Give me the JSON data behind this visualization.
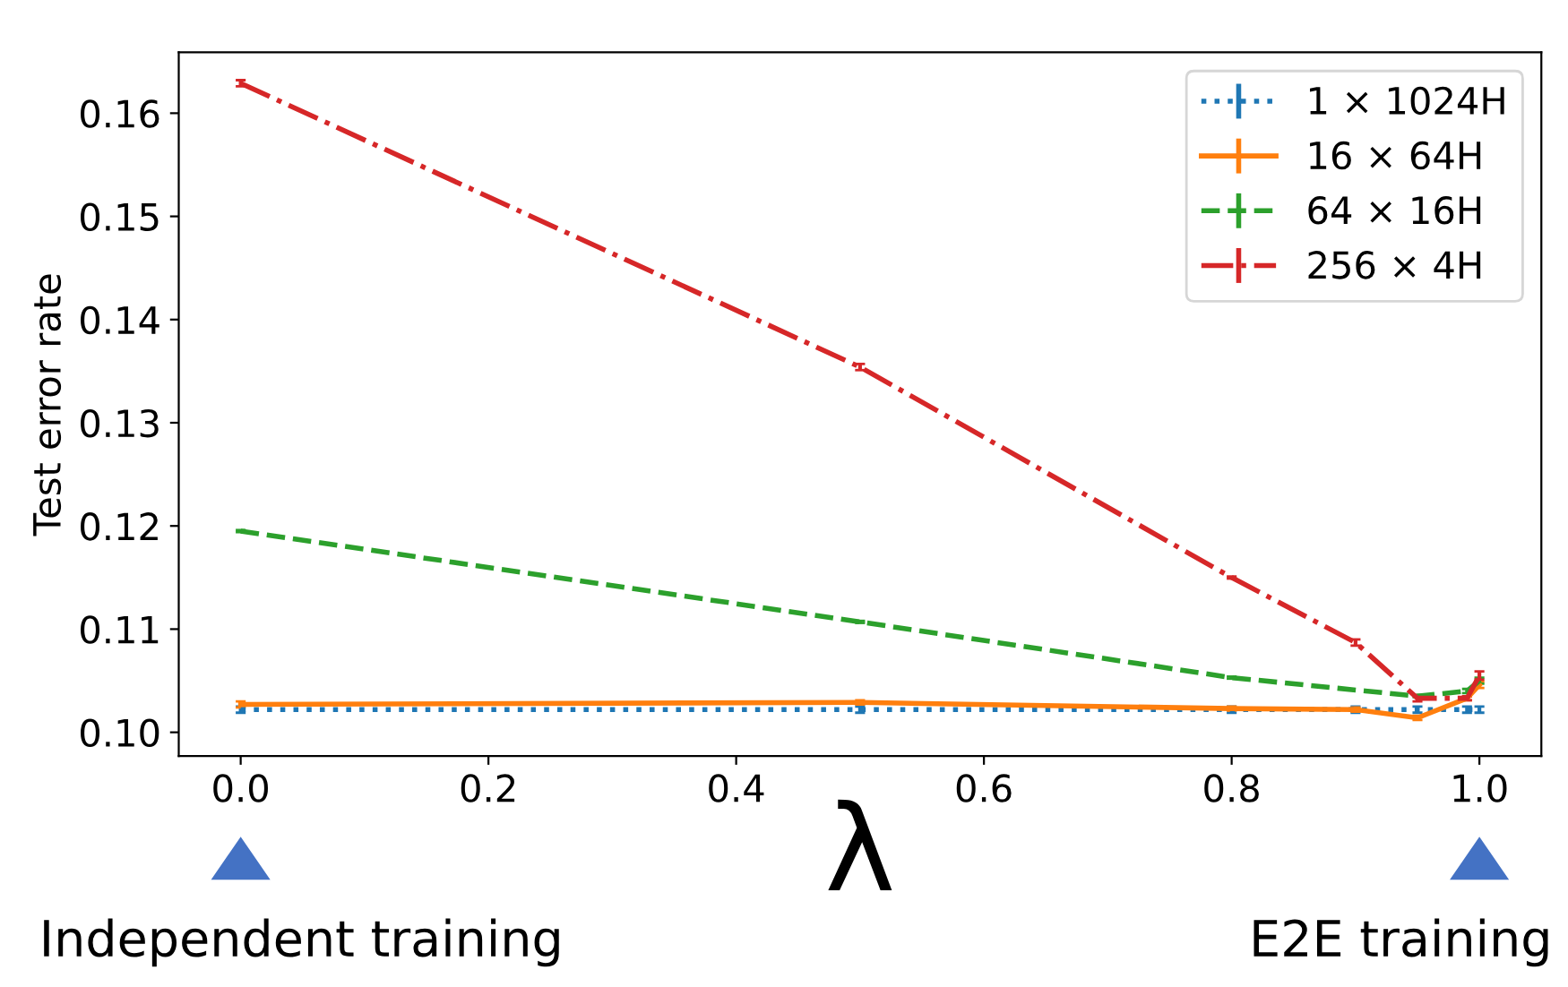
{
  "chart_data": {
    "type": "line",
    "xlabel": "λ",
    "ylabel": "Test error rate",
    "x": [
      0,
      0.5,
      0.8,
      0.9,
      0.95,
      0.99,
      1.0
    ],
    "series": [
      {
        "name": "1 × 1024H",
        "color": "#1f77b4",
        "line_style": "dotted",
        "values": [
          0.1022,
          0.1022,
          0.1022,
          0.1022,
          0.1022,
          0.1022,
          0.1022
        ],
        "errors": [
          0.0003,
          0.0003,
          0.0003,
          0.0003,
          0.0003,
          0.0003,
          0.0003
        ]
      },
      {
        "name": "16 × 64H",
        "color": "#ff7f0e",
        "line_style": "solid",
        "values": [
          0.1027,
          0.1029,
          0.1023,
          0.1022,
          0.1014,
          0.1033,
          0.1046
        ],
        "errors": [
          0.0003,
          0.0002,
          0.0002,
          0.0002,
          0.0002,
          0.0002,
          0.0003
        ]
      },
      {
        "name": "64 × 16H",
        "color": "#2ca02c",
        "line_style": "dashed",
        "values": [
          0.1195,
          0.1107,
          0.1053,
          null,
          0.1035,
          0.104,
          0.105
        ],
        "errors": [
          0.0001,
          0.0001,
          0.0001,
          null,
          0.0001,
          0.0002,
          0.0003
        ]
      },
      {
        "name": "256 × 4H",
        "color": "#d62728",
        "line_style": "dashdot",
        "values": [
          0.1629,
          0.1354,
          0.115,
          0.1087,
          0.1033,
          0.1033,
          0.1055
        ],
        "errors": [
          0.0003,
          0.0003,
          0.0001,
          0.0003,
          0.0003,
          0.0002,
          0.0004
        ]
      }
    ],
    "xlim": [
      -0.05,
      1.05
    ],
    "ylim": [
      0.0977,
      0.1659
    ],
    "xticks": [
      {
        "value": 0,
        "label": "0.0"
      },
      0.2,
      0.4,
      0.6,
      0.8,
      {
        "value": 1,
        "label": "1.0"
      }
    ],
    "yticks": [
      {
        "value": 0.1,
        "label": "0.10"
      },
      0.11,
      0.12,
      0.13,
      0.14,
      0.15,
      0.16
    ],
    "grid": false,
    "legend": "top right",
    "marker": "none",
    "annotations": [
      "Independent training",
      "E2E training"
    ]
  }
}
